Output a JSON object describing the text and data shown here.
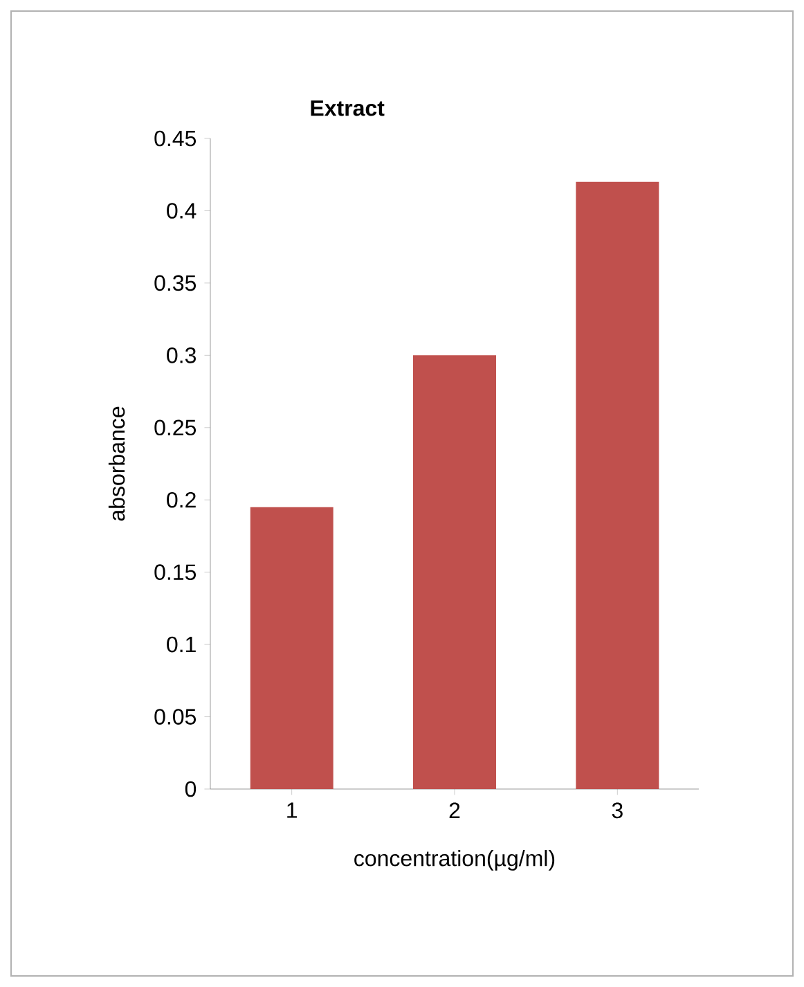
{
  "chart_data": {
    "type": "bar",
    "title": "Extract",
    "xlabel": "concentration(µg/ml)",
    "ylabel": "absorbance",
    "categories": [
      "1",
      "2",
      "3"
    ],
    "values": [
      0.195,
      0.3,
      0.42
    ],
    "color": "#c0504d",
    "ylim": [
      0,
      0.45
    ],
    "yticks": [
      0,
      0.05,
      0.1,
      0.15,
      0.2,
      0.25,
      0.3,
      0.35,
      0.4,
      0.45
    ]
  }
}
